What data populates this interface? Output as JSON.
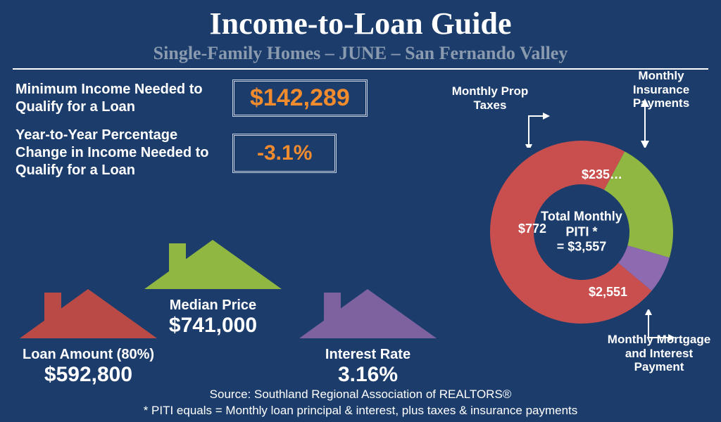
{
  "header": {
    "title": "Income-to-Loan Guide",
    "subtitle": "Single-Family Homes  – JUNE –  San Fernando Valley"
  },
  "stats": {
    "min_income_label": "Minimum Income Needed to Qualify for a Loan",
    "min_income_value": "$142,289",
    "yoy_label": "Year-to-Year Percentage Change in Income Needed to Qualify for a Loan",
    "yoy_value": "-3.1%",
    "box_border_color": "#c9d2df",
    "value_color": "#f08b2e"
  },
  "houses": {
    "loan": {
      "label": "Loan Amount (80%)",
      "value": "$592,800",
      "color": "#b94a45"
    },
    "median": {
      "label": "Median Price",
      "value": "$741,000",
      "color": "#8fb741"
    },
    "rate": {
      "label": "Interest Rate",
      "value": "3.16%",
      "color": "#7d629f"
    }
  },
  "donut": {
    "type": "donut",
    "center_title": "Total Monthly PITI *",
    "center_value": "= $3,557",
    "slices": [
      {
        "name": "mortgage",
        "label": "$2,551",
        "value": 2551,
        "color": "#c94f4f",
        "callout": "Monthly Mortgage and Interest  Payment"
      },
      {
        "name": "taxes",
        "label": "$772",
        "value": 772,
        "color": "#8fb741",
        "callout": "Monthly Prop Taxes"
      },
      {
        "name": "insurance",
        "label": "$235…",
        "value": 235,
        "color": "#8e6bb0",
        "callout": "Monthly Insurance Payments"
      }
    ],
    "total": 3557,
    "outer_radius": 130,
    "inner_radius": 68,
    "background": "#1c3d6b"
  },
  "footer": {
    "source": "Source: Southland Regional Association of REALTORS®",
    "note": "* PITI equals = Monthly loan principal & interest, plus taxes & insurance payments"
  },
  "colors": {
    "bg": "#1c3d6b",
    "text": "#ffffff",
    "subtitle": "#8a9aaf"
  }
}
